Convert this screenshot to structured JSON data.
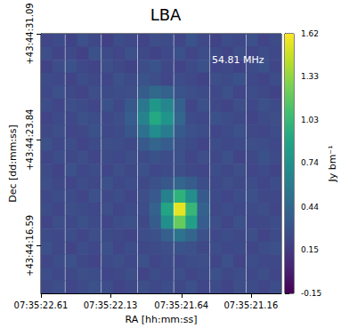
{
  "chart_data": {
    "type": "heatmap",
    "title": "LBA",
    "annotation": "54.81 MHz",
    "x_label": "RA [hh:mm:ss]",
    "y_label": "Dec [dd:mm:ss]",
    "color": "viridis",
    "xlim": [
      22.61,
      20.95
    ],
    "ylim": [
      13.33,
      31.09
    ],
    "xticks": [
      {
        "value": 22.61,
        "label": "07:35:22.61"
      },
      {
        "value": 22.13,
        "label": "07:35:22.13"
      },
      {
        "value": 21.64,
        "label": "07:35:21.64"
      },
      {
        "value": 21.16,
        "label": "07:35:21.16"
      }
    ],
    "yticks": [
      {
        "value": 16.59,
        "label": "+43:44:16.59"
      },
      {
        "value": 23.84,
        "label": "+43:44:23.84"
      },
      {
        "value": 31.09,
        "label": "+43:44:31.09"
      }
    ],
    "x": [
      22.57,
      22.49,
      22.4,
      22.32,
      22.24,
      22.15,
      22.07,
      21.99,
      21.9,
      21.82,
      21.74,
      21.65,
      21.57,
      21.49,
      21.4,
      21.32,
      21.24,
      21.15,
      21.07,
      20.99
    ],
    "y": [
      30.65,
      29.76,
      28.87,
      27.98,
      27.09,
      26.2,
      25.31,
      24.42,
      23.54,
      22.65,
      21.76,
      20.87,
      19.98,
      19.09,
      18.2,
      17.31,
      16.43,
      15.54,
      14.65,
      13.77
    ],
    "values": [
      [
        0.22,
        0.25,
        0.2,
        0.28,
        0.24,
        0.19,
        0.26,
        0.23,
        0.21,
        0.27,
        0.25,
        0.22,
        0.3,
        0.24,
        0.2,
        0.26,
        0.23,
        0.28,
        0.21,
        0.25
      ],
      [
        0.27,
        0.21,
        0.24,
        0.19,
        0.29,
        0.25,
        0.22,
        0.28,
        0.24,
        0.2,
        0.23,
        0.29,
        0.22,
        0.26,
        0.25,
        0.21,
        0.27,
        0.22,
        0.26,
        0.23
      ],
      [
        0.2,
        0.26,
        0.29,
        0.23,
        0.21,
        0.27,
        0.24,
        0.2,
        0.26,
        0.31,
        0.24,
        0.21,
        0.25,
        0.28,
        0.22,
        0.24,
        0.2,
        0.25,
        0.29,
        0.22
      ],
      [
        0.25,
        0.23,
        0.21,
        0.26,
        0.24,
        0.22,
        0.28,
        0.25,
        0.3,
        0.27,
        0.22,
        0.26,
        0.23,
        0.2,
        0.27,
        0.25,
        0.29,
        0.23,
        0.21,
        0.26
      ],
      [
        0.23,
        0.28,
        0.24,
        0.21,
        0.27,
        0.25,
        0.26,
        0.27,
        0.36,
        0.45,
        0.4,
        0.3,
        0.27,
        0.25,
        0.23,
        0.28,
        0.22,
        0.26,
        0.24,
        0.2
      ],
      [
        0.26,
        0.22,
        0.27,
        0.25,
        0.22,
        0.29,
        0.24,
        0.33,
        0.55,
        0.78,
        0.66,
        0.38,
        0.22,
        0.28,
        0.24,
        0.21,
        0.27,
        0.23,
        0.28,
        0.25
      ],
      [
        0.21,
        0.25,
        0.23,
        0.28,
        0.26,
        0.24,
        0.27,
        0.37,
        0.63,
        0.92,
        0.76,
        0.42,
        0.25,
        0.23,
        0.29,
        0.26,
        0.24,
        0.21,
        0.25,
        0.27
      ],
      [
        0.24,
        0.27,
        0.22,
        0.24,
        0.29,
        0.23,
        0.25,
        0.32,
        0.5,
        0.7,
        0.58,
        0.35,
        0.28,
        0.26,
        0.22,
        0.25,
        0.28,
        0.24,
        0.22,
        0.26
      ],
      [
        0.28,
        0.23,
        0.26,
        0.21,
        0.25,
        0.27,
        0.26,
        0.24,
        0.34,
        0.42,
        0.37,
        0.28,
        0.25,
        0.21,
        0.26,
        0.23,
        0.25,
        0.27,
        0.26,
        0.23
      ],
      [
        0.22,
        0.26,
        0.24,
        0.27,
        0.22,
        0.25,
        0.23,
        0.27,
        0.25,
        0.29,
        0.26,
        0.28,
        0.22,
        0.27,
        0.24,
        0.28,
        0.21,
        0.24,
        0.29,
        0.25
      ],
      [
        0.25,
        0.21,
        0.28,
        0.23,
        0.26,
        0.22,
        0.27,
        0.24,
        0.28,
        0.23,
        0.25,
        0.27,
        0.24,
        0.22,
        0.26,
        0.24,
        0.27,
        0.22,
        0.25,
        0.21
      ],
      [
        0.27,
        0.24,
        0.22,
        0.26,
        0.24,
        0.28,
        0.23,
        0.26,
        0.24,
        0.28,
        0.33,
        0.42,
        0.36,
        0.26,
        0.23,
        0.27,
        0.24,
        0.26,
        0.22,
        0.26
      ],
      [
        0.23,
        0.26,
        0.25,
        0.22,
        0.28,
        0.24,
        0.26,
        0.22,
        0.27,
        0.34,
        0.62,
        0.98,
        0.72,
        0.35,
        0.25,
        0.22,
        0.26,
        0.28,
        0.24,
        0.23
      ],
      [
        0.26,
        0.22,
        0.27,
        0.25,
        0.23,
        0.27,
        0.22,
        0.25,
        0.26,
        0.4,
        0.88,
        1.55,
        1.02,
        0.41,
        0.24,
        0.26,
        0.23,
        0.25,
        0.27,
        0.22
      ],
      [
        0.21,
        0.27,
        0.23,
        0.28,
        0.25,
        0.22,
        0.26,
        0.28,
        0.24,
        0.36,
        0.72,
        1.2,
        0.85,
        0.37,
        0.27,
        0.22,
        0.28,
        0.23,
        0.24,
        0.26
      ],
      [
        0.25,
        0.23,
        0.26,
        0.22,
        0.27,
        0.25,
        0.24,
        0.21,
        0.26,
        0.28,
        0.38,
        0.52,
        0.42,
        0.28,
        0.23,
        0.26,
        0.24,
        0.27,
        0.21,
        0.25
      ],
      [
        0.28,
        0.24,
        0.21,
        0.26,
        0.23,
        0.28,
        0.22,
        0.26,
        0.23,
        0.25,
        0.27,
        0.3,
        0.28,
        0.24,
        0.26,
        0.23,
        0.25,
        0.22,
        0.26,
        0.28
      ],
      [
        0.22,
        0.26,
        0.28,
        0.24,
        0.21,
        0.25,
        0.27,
        0.23,
        0.28,
        0.22,
        0.25,
        0.23,
        0.26,
        0.27,
        0.22,
        0.28,
        0.21,
        0.26,
        0.23,
        0.24
      ],
      [
        0.26,
        0.23,
        0.24,
        0.27,
        0.26,
        0.22,
        0.24,
        0.27,
        0.21,
        0.26,
        0.23,
        0.27,
        0.22,
        0.25,
        0.28,
        0.24,
        0.26,
        0.23,
        0.27,
        0.22
      ],
      [
        0.24,
        0.27,
        0.22,
        0.25,
        0.28,
        0.26,
        0.21,
        0.24,
        0.27,
        0.23,
        0.26,
        0.24,
        0.28,
        0.22,
        0.25,
        0.21,
        0.27,
        0.25,
        0.22,
        0.26
      ]
    ],
    "colorbar": {
      "label": "Jy bm⁻¹",
      "range": [
        -0.15,
        1.62
      ],
      "ticks": [
        -0.15,
        0.15,
        0.44,
        0.74,
        1.03,
        1.33,
        1.62
      ]
    }
  }
}
